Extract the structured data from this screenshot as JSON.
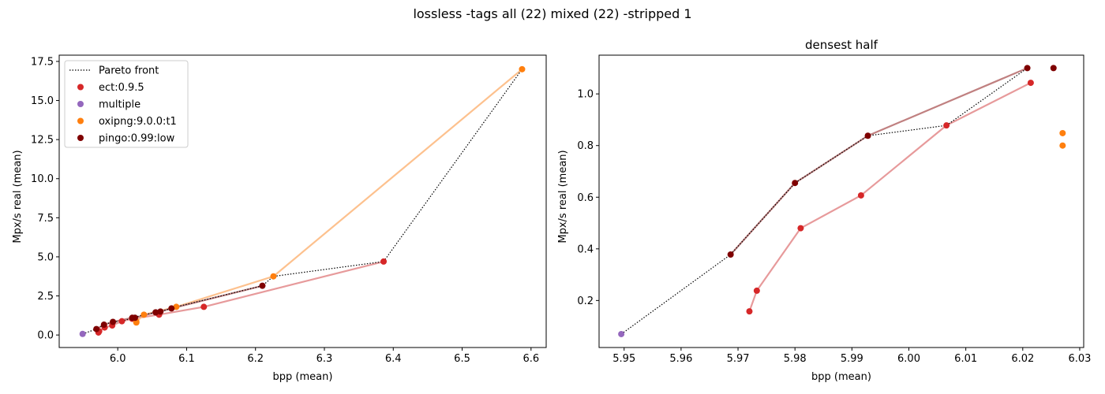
{
  "figure": {
    "suptitle": "lossless -tags all (22) mixed (22) -stripped 1"
  },
  "colors": {
    "ect": "#d62728",
    "multiple": "#9467bd",
    "oxipng": "#ff7f0e",
    "pingo": "#7f0000",
    "ect_line": "#e79a9b",
    "oxipng_line": "#fdc18e",
    "pingo_line": "#c08080",
    "pareto": "#000000"
  },
  "chart_data": [
    {
      "type": "scatter",
      "title": "",
      "xlabel": "bpp (mean)",
      "ylabel": "Mpx/s real (mean)",
      "xlim": [
        5.915,
        6.622
      ],
      "ylim": [
        -0.8,
        17.9
      ],
      "xticks": [
        6.0,
        6.1,
        6.2,
        6.3,
        6.4,
        6.5,
        6.6
      ],
      "xtick_labels": [
        "6.0",
        "6.1",
        "6.2",
        "6.3",
        "6.4",
        "6.5",
        "6.6"
      ],
      "yticks": [
        0.0,
        2.5,
        5.0,
        7.5,
        10.0,
        12.5,
        15.0,
        17.5
      ],
      "ytick_labels": [
        "0.0",
        "2.5",
        "5.0",
        "7.5",
        "10.0",
        "12.5",
        "15.0",
        "17.5"
      ],
      "grid": false,
      "legend": {
        "placement": "top-left",
        "entries": [
          {
            "label": "Pareto front",
            "kind": "line",
            "color_key": "pareto"
          },
          {
            "label": "ect:0.9.5",
            "kind": "marker",
            "color_key": "ect"
          },
          {
            "label": "multiple",
            "kind": "marker",
            "color_key": "multiple"
          },
          {
            "label": "oxipng:9.0.0:t1",
            "kind": "marker",
            "color_key": "oxipng"
          },
          {
            "label": "pingo:0.99:low",
            "kind": "marker",
            "color_key": "pingo"
          }
        ]
      },
      "pareto_front": [
        [
          5.949,
          0.07
        ],
        [
          5.969,
          0.38
        ],
        [
          5.98,
          0.66
        ],
        [
          5.993,
          0.84
        ],
        [
          6.007,
          0.88
        ],
        [
          6.021,
          1.1
        ],
        [
          6.038,
          1.3
        ],
        [
          6.062,
          1.5
        ],
        [
          6.085,
          1.8
        ],
        [
          6.21,
          3.15
        ],
        [
          6.226,
          3.75
        ],
        [
          6.386,
          4.7
        ],
        [
          6.587,
          17.0
        ]
      ],
      "series": [
        {
          "key": "ect",
          "line": true,
          "points": [
            [
              5.972,
              0.16
            ],
            [
              5.973,
              0.24
            ],
            [
              5.981,
              0.48
            ],
            [
              5.992,
              0.61
            ],
            [
              6.006,
              0.88
            ],
            [
              6.021,
              1.04
            ],
            [
              6.06,
              1.3
            ],
            [
              6.125,
              1.8
            ],
            [
              6.386,
              4.7
            ]
          ]
        },
        {
          "key": "oxipng",
          "line": true,
          "points": [
            [
              6.027,
              0.8
            ],
            [
              6.027,
              0.85
            ],
            [
              6.038,
              1.3
            ],
            [
              6.085,
              1.8
            ],
            [
              6.226,
              3.75
            ],
            [
              6.587,
              17.0
            ]
          ]
        },
        {
          "key": "pingo",
          "line": true,
          "points": [
            [
              5.969,
              0.38
            ],
            [
              5.98,
              0.66
            ],
            [
              5.993,
              0.84
            ],
            [
              6.021,
              1.1
            ],
            [
              6.025,
              1.1
            ],
            [
              6.055,
              1.45
            ],
            [
              6.062,
              1.5
            ],
            [
              6.078,
              1.7
            ],
            [
              6.21,
              3.15
            ]
          ]
        },
        {
          "key": "multiple",
          "line": false,
          "points": [
            [
              5.949,
              0.07
            ]
          ]
        }
      ]
    },
    {
      "type": "scatter",
      "title": "densest half",
      "xlabel": "bpp (mean)",
      "ylabel": "Mpx/s real (mean)",
      "xlim": [
        5.9456,
        6.0307
      ],
      "ylim": [
        0.018,
        1.15
      ],
      "xticks": [
        5.95,
        5.96,
        5.97,
        5.98,
        5.99,
        6.0,
        6.01,
        6.02,
        6.03
      ],
      "xtick_labels": [
        "5.95",
        "5.96",
        "5.97",
        "5.98",
        "5.99",
        "6.00",
        "6.01",
        "6.02",
        "6.03"
      ],
      "yticks": [
        0.2,
        0.4,
        0.6,
        0.8,
        1.0
      ],
      "ytick_labels": [
        "0.2",
        "0.4",
        "0.6",
        "0.8",
        "1.0"
      ],
      "grid": false,
      "pareto_front": [
        [
          5.9495,
          0.07
        ],
        [
          5.9687,
          0.378
        ],
        [
          5.98,
          0.655
        ],
        [
          5.9928,
          0.838
        ],
        [
          6.0066,
          0.878
        ],
        [
          6.0208,
          1.1
        ]
      ],
      "series": [
        {
          "key": "ect",
          "line": true,
          "points": [
            [
              5.972,
              0.158
            ],
            [
              5.9733,
              0.238
            ],
            [
              5.981,
              0.48
            ],
            [
              5.9916,
              0.607
            ],
            [
              6.0066,
              0.878
            ],
            [
              6.0214,
              1.043
            ]
          ]
        },
        {
          "key": "pingo",
          "line": true,
          "points": [
            [
              5.9687,
              0.378
            ],
            [
              5.98,
              0.655
            ],
            [
              5.9928,
              0.838
            ],
            [
              6.0208,
              1.1
            ]
          ]
        },
        {
          "key": "pingo",
          "line": false,
          "points": [
            [
              6.0254,
              1.1
            ]
          ]
        },
        {
          "key": "oxipng",
          "line": false,
          "points": [
            [
              6.027,
              0.8
            ],
            [
              6.027,
              0.848
            ]
          ]
        },
        {
          "key": "multiple",
          "line": false,
          "points": [
            [
              5.9495,
              0.07
            ]
          ]
        }
      ]
    }
  ]
}
